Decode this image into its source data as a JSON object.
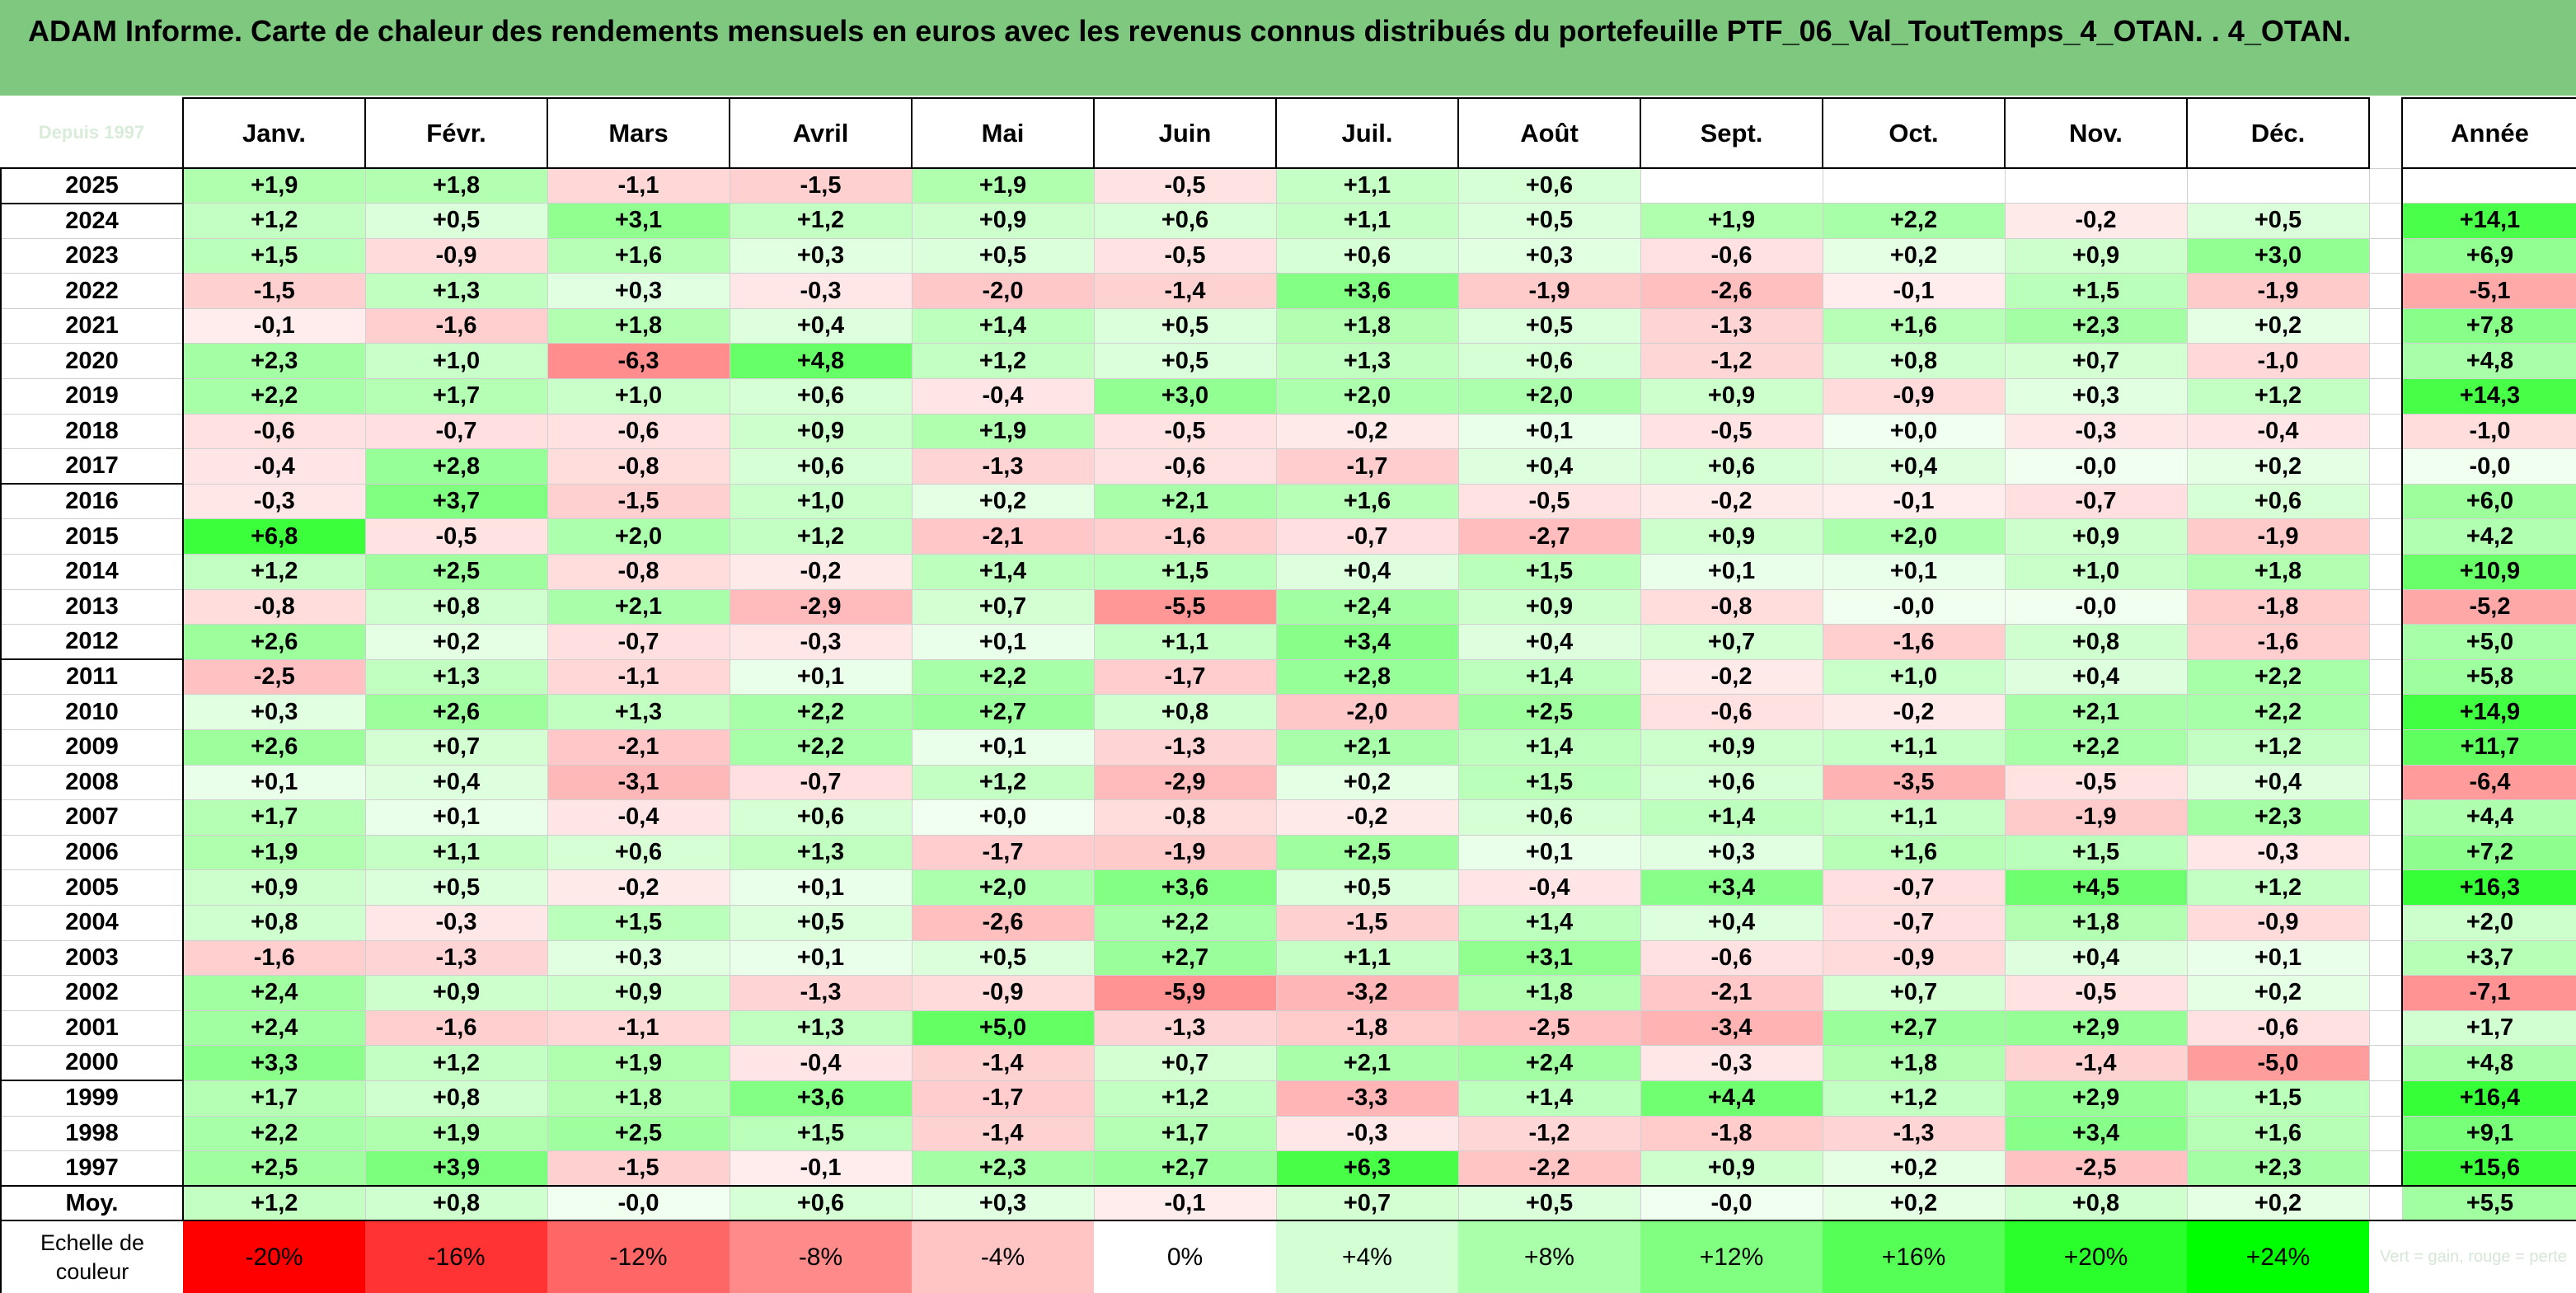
{
  "title": "ADAM Informe. Carte de chaleur des rendements mensuels en euros avec les revenus connus distribués du portefeuille PTF_06_Val_ToutTemps_4_OTAN. . 4_OTAN.",
  "corner_label": "Depuis 1997",
  "year_header": "Année",
  "avg_label": "Moy.",
  "scale_label": "Echelle de couleur",
  "scale_caption": "Vert = gain, rouge = perte",
  "chart_data": {
    "type": "heatmap",
    "title": "ADAM Informe. Carte de chaleur des rendements mensuels en euros avec les revenus connus distribués du portefeuille PTF_06_Val_ToutTemps_4_OTAN. . 4_OTAN.",
    "columns": [
      "Janv.",
      "Févr.",
      "Mars",
      "Avril",
      "Mai",
      "Juin",
      "Juil.",
      "Août",
      "Sept.",
      "Oct.",
      "Nov.",
      "Déc."
    ],
    "rows": [
      {
        "year": "2025",
        "values": [
          "+1,9",
          "+1,8",
          "-1,1",
          "-1,5",
          "+1,9",
          "-0,5",
          "+1,1",
          "+0,6",
          "",
          "",
          "",
          ""
        ],
        "annual": ""
      },
      {
        "year": "2024",
        "values": [
          "+1,2",
          "+0,5",
          "+3,1",
          "+1,2",
          "+0,9",
          "+0,6",
          "+1,1",
          "+0,5",
          "+1,9",
          "+2,2",
          "-0,2",
          "+0,5"
        ],
        "annual": "+14,1"
      },
      {
        "year": "2023",
        "values": [
          "+1,5",
          "-0,9",
          "+1,6",
          "+0,3",
          "+0,5",
          "-0,5",
          "+0,6",
          "+0,3",
          "-0,6",
          "+0,2",
          "+0,9",
          "+3,0"
        ],
        "annual": "+6,9"
      },
      {
        "year": "2022",
        "values": [
          "-1,5",
          "+1,3",
          "+0,3",
          "-0,3",
          "-2,0",
          "-1,4",
          "+3,6",
          "-1,9",
          "-2,6",
          "-0,1",
          "+1,5",
          "-1,9"
        ],
        "annual": "-5,1"
      },
      {
        "year": "2021",
        "values": [
          "-0,1",
          "-1,6",
          "+1,8",
          "+0,4",
          "+1,4",
          "+0,5",
          "+1,8",
          "+0,5",
          "-1,3",
          "+1,6",
          "+2,3",
          "+0,2"
        ],
        "annual": "+7,8"
      },
      {
        "year": "2020",
        "values": [
          "+2,3",
          "+1,0",
          "-6,3",
          "+4,8",
          "+1,2",
          "+0,5",
          "+1,3",
          "+0,6",
          "-1,2",
          "+0,8",
          "+0,7",
          "-1,0"
        ],
        "annual": "+4,8"
      },
      {
        "year": "2019",
        "values": [
          "+2,2",
          "+1,7",
          "+1,0",
          "+0,6",
          "-0,4",
          "+3,0",
          "+2,0",
          "+2,0",
          "+0,9",
          "-0,9",
          "+0,3",
          "+1,2"
        ],
        "annual": "+14,3"
      },
      {
        "year": "2018",
        "values": [
          "-0,6",
          "-0,7",
          "-0,6",
          "+0,9",
          "+1,9",
          "-0,5",
          "-0,2",
          "+0,1",
          "-0,5",
          "+0,0",
          "-0,3",
          "-0,4"
        ],
        "annual": "-1,0"
      },
      {
        "year": "2017",
        "values": [
          "-0,4",
          "+2,8",
          "-0,8",
          "+0,6",
          "-1,3",
          "-0,6",
          "-1,7",
          "+0,4",
          "+0,6",
          "+0,4",
          "-0,0",
          "+0,2"
        ],
        "annual": "-0,0"
      },
      {
        "year": "2016",
        "values": [
          "-0,3",
          "+3,7",
          "-1,5",
          "+1,0",
          "+0,2",
          "+2,1",
          "+1,6",
          "-0,5",
          "-0,2",
          "-0,1",
          "-0,7",
          "+0,6"
        ],
        "annual": "+6,0"
      },
      {
        "year": "2015",
        "values": [
          "+6,8",
          "-0,5",
          "+2,0",
          "+1,2",
          "-2,1",
          "-1,6",
          "-0,7",
          "-2,7",
          "+0,9",
          "+2,0",
          "+0,9",
          "-1,9"
        ],
        "annual": "+4,2"
      },
      {
        "year": "2014",
        "values": [
          "+1,2",
          "+2,5",
          "-0,8",
          "-0,2",
          "+1,4",
          "+1,5",
          "+0,4",
          "+1,5",
          "+0,1",
          "+0,1",
          "+1,0",
          "+1,8"
        ],
        "annual": "+10,9"
      },
      {
        "year": "2013",
        "values": [
          "-0,8",
          "+0,8",
          "+2,1",
          "-2,9",
          "+0,7",
          "-5,5",
          "+2,4",
          "+0,9",
          "-0,8",
          "-0,0",
          "-0,0",
          "-1,8"
        ],
        "annual": "-5,2"
      },
      {
        "year": "2012",
        "values": [
          "+2,6",
          "+0,2",
          "-0,7",
          "-0,3",
          "+0,1",
          "+1,1",
          "+3,4",
          "+0,4",
          "+0,7",
          "-1,6",
          "+0,8",
          "-1,6"
        ],
        "annual": "+5,0"
      },
      {
        "year": "2011",
        "values": [
          "-2,5",
          "+1,3",
          "-1,1",
          "+0,1",
          "+2,2",
          "-1,7",
          "+2,8",
          "+1,4",
          "-0,2",
          "+1,0",
          "+0,4",
          "+2,2"
        ],
        "annual": "+5,8"
      },
      {
        "year": "2010",
        "values": [
          "+0,3",
          "+2,6",
          "+1,3",
          "+2,2",
          "+2,7",
          "+0,8",
          "-2,0",
          "+2,5",
          "-0,6",
          "-0,2",
          "+2,1",
          "+2,2"
        ],
        "annual": "+14,9"
      },
      {
        "year": "2009",
        "values": [
          "+2,6",
          "+0,7",
          "-2,1",
          "+2,2",
          "+0,1",
          "-1,3",
          "+2,1",
          "+1,4",
          "+0,9",
          "+1,1",
          "+2,2",
          "+1,2"
        ],
        "annual": "+11,7"
      },
      {
        "year": "2008",
        "values": [
          "+0,1",
          "+0,4",
          "-3,1",
          "-0,7",
          "+1,2",
          "-2,9",
          "+0,2",
          "+1,5",
          "+0,6",
          "-3,5",
          "-0,5",
          "+0,4"
        ],
        "annual": "-6,4"
      },
      {
        "year": "2007",
        "values": [
          "+1,7",
          "+0,1",
          "-0,4",
          "+0,6",
          "+0,0",
          "-0,8",
          "-0,2",
          "+0,6",
          "+1,4",
          "+1,1",
          "-1,9",
          "+2,3"
        ],
        "annual": "+4,4"
      },
      {
        "year": "2006",
        "values": [
          "+1,9",
          "+1,1",
          "+0,6",
          "+1,3",
          "-1,7",
          "-1,9",
          "+2,5",
          "+0,1",
          "+0,3",
          "+1,6",
          "+1,5",
          "-0,3"
        ],
        "annual": "+7,2"
      },
      {
        "year": "2005",
        "values": [
          "+0,9",
          "+0,5",
          "-0,2",
          "+0,1",
          "+2,0",
          "+3,6",
          "+0,5",
          "-0,4",
          "+3,4",
          "-0,7",
          "+4,5",
          "+1,2"
        ],
        "annual": "+16,3"
      },
      {
        "year": "2004",
        "values": [
          "+0,8",
          "-0,3",
          "+1,5",
          "+0,5",
          "-2,6",
          "+2,2",
          "-1,5",
          "+1,4",
          "+0,4",
          "-0,7",
          "+1,8",
          "-0,9"
        ],
        "annual": "+2,0"
      },
      {
        "year": "2003",
        "values": [
          "-1,6",
          "-1,3",
          "+0,3",
          "+0,1",
          "+0,5",
          "+2,7",
          "+1,1",
          "+3,1",
          "-0,6",
          "-0,9",
          "+0,4",
          "+0,1"
        ],
        "annual": "+3,7"
      },
      {
        "year": "2002",
        "values": [
          "+2,4",
          "+0,9",
          "+0,9",
          "-1,3",
          "-0,9",
          "-5,9",
          "-3,2",
          "+1,8",
          "-2,1",
          "+0,7",
          "-0,5",
          "+0,2"
        ],
        "annual": "-7,1"
      },
      {
        "year": "2001",
        "values": [
          "+2,4",
          "-1,6",
          "-1,1",
          "+1,3",
          "+5,0",
          "-1,3",
          "-1,8",
          "-2,5",
          "-3,4",
          "+2,7",
          "+2,9",
          "-0,6"
        ],
        "annual": "+1,7"
      },
      {
        "year": "2000",
        "values": [
          "+3,3",
          "+1,2",
          "+1,9",
          "-0,4",
          "-1,4",
          "+0,7",
          "+2,1",
          "+2,4",
          "-0,3",
          "+1,8",
          "-1,4",
          "-5,0"
        ],
        "annual": "+4,8"
      },
      {
        "year": "1999",
        "values": [
          "+1,7",
          "+0,8",
          "+1,8",
          "+3,6",
          "-1,7",
          "+1,2",
          "-3,3",
          "+1,4",
          "+4,4",
          "+1,2",
          "+2,9",
          "+1,5"
        ],
        "annual": "+16,4"
      },
      {
        "year": "1998",
        "values": [
          "+2,2",
          "+1,9",
          "+2,5",
          "+1,5",
          "-1,4",
          "+1,7",
          "-0,3",
          "-1,2",
          "-1,8",
          "-1,3",
          "+3,4",
          "+1,6"
        ],
        "annual": "+9,1"
      },
      {
        "year": "1997",
        "values": [
          "+2,5",
          "+3,9",
          "-1,5",
          "-0,1",
          "+2,3",
          "+2,7",
          "+6,3",
          "-2,2",
          "+0,9",
          "+0,2",
          "-2,5",
          "+2,3"
        ],
        "annual": "+15,6"
      }
    ],
    "average": {
      "values": [
        "+1,2",
        "+0,8",
        "-0,0",
        "+0,6",
        "+0,3",
        "-0,1",
        "+0,7",
        "+0,5",
        "-0,0",
        "+0,2",
        "+0,8",
        "+0,2"
      ],
      "annual": "+5,5"
    },
    "color_scale": {
      "labels": [
        "-20%",
        "-16%",
        "-12%",
        "-8%",
        "-4%",
        "0%",
        "+4%",
        "+8%",
        "+12%",
        "+16%",
        "+20%",
        "+24%"
      ],
      "stops": [
        -20,
        -16,
        -12,
        -8,
        -4,
        0,
        4,
        8,
        12,
        16,
        20,
        24
      ],
      "colors": [
        "#ff0000",
        "#ff3333",
        "#ff6666",
        "#ff8a8a",
        "#ffc4c4",
        "#ffffff",
        "#d4ffd4",
        "#aaffaa",
        "#80ff80",
        "#55ff55",
        "#2bff2b",
        "#00ff00"
      ]
    }
  }
}
